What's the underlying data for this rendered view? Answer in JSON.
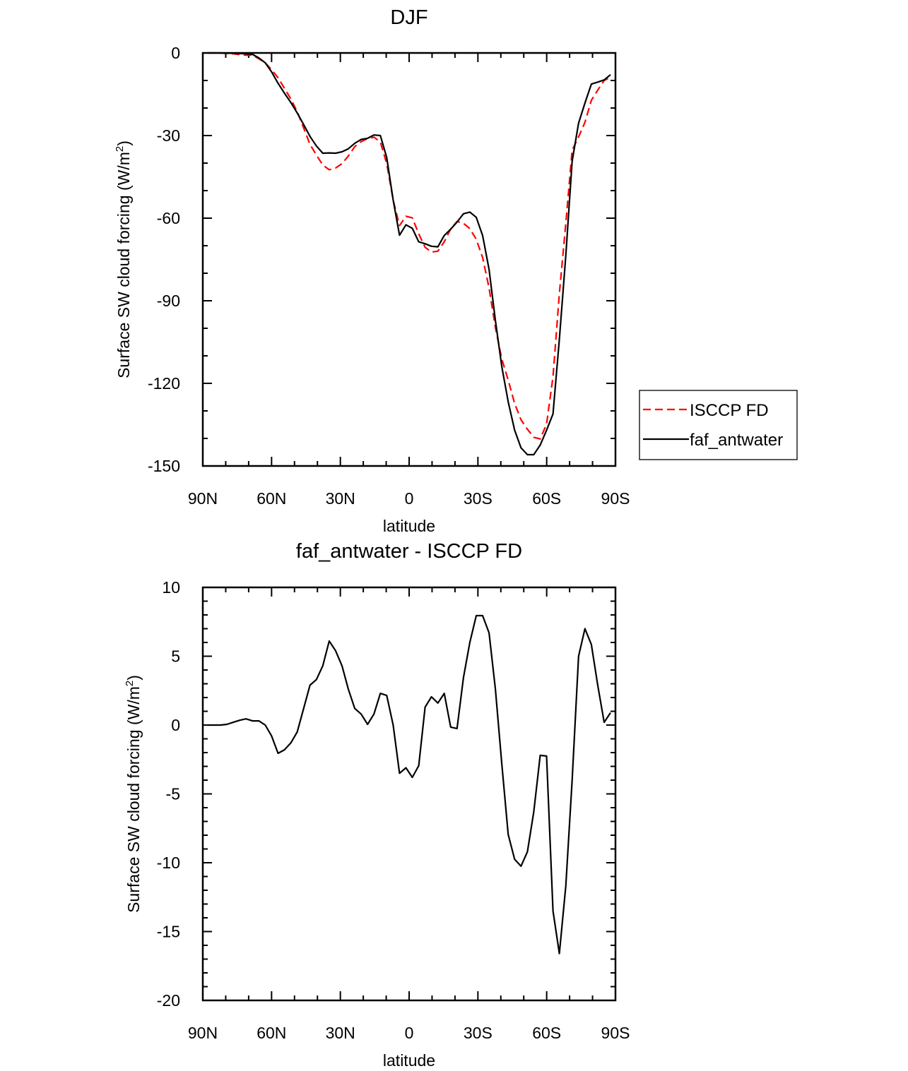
{
  "chart_data": [
    {
      "type": "line",
      "title": "DJF",
      "xlabel": "latitude",
      "ylabel": "Surface SW cloud forcing (W/m2)",
      "ylabel_parts": {
        "main": "Surface SW cloud forcing (W/m",
        "sup": "2",
        "close": ")"
      },
      "xlim": [
        90,
        -90
      ],
      "ylim": [
        -150,
        0
      ],
      "xticks": [
        90,
        60,
        30,
        0,
        -30,
        -60,
        -90
      ],
      "xtick_labels": [
        "90N",
        "60N",
        "30N",
        "0",
        "30S",
        "60S",
        "90S"
      ],
      "yticks": [
        0,
        -30,
        -60,
        -90,
        -120,
        -150
      ],
      "ytick_labels": [
        "0",
        "-30",
        "-60",
        "-90",
        "-120",
        "-150"
      ],
      "x_minor_step": 10,
      "y_minor_step": 10,
      "legend": {
        "placement": "right",
        "entries": [
          "ISCCP FD",
          "faf_antwater"
        ]
      },
      "series": [
        {
          "name": "ISCCP FD",
          "color": "#ff0000",
          "style": "dashed",
          "values": [
            0,
            0,
            0,
            -0.2,
            -0.3,
            -0.6,
            -0.8,
            -0.8,
            -2.1,
            -3.6,
            -6.1,
            -9.0,
            -12.8,
            -16.7,
            -21.3,
            -27.2,
            -33.2,
            -37.1,
            -40.7,
            -42.4,
            -41.8,
            -40.2,
            -37.4,
            -34.0,
            -32.2,
            -31.1,
            -30.6,
            -32.3,
            -40.2,
            -53.4,
            -62.7,
            -59.3,
            -59.9,
            -65.7,
            -70.6,
            -72.3,
            -72.0,
            -68.6,
            -63.9,
            -61.2,
            -61.9,
            -63.8,
            -67.7,
            -74.3,
            -85.3,
            -99.8,
            -111.2,
            -118.8,
            -127.3,
            -133.2,
            -136.7,
            -139.6,
            -140.2,
            -134.8,
            -117.6,
            -87.4,
            -62.0,
            -35.3,
            -30.5,
            -25.2,
            -17.2,
            -13.5,
            -10.0,
            -8.8
          ]
        },
        {
          "name": "faf_antwater",
          "color": "#000000",
          "style": "solid",
          "values": [
            0,
            0,
            0,
            -0.1,
            -0.1,
            -0.2,
            -0.3,
            -0.5,
            -1.8,
            -3.6,
            -6.9,
            -11.0,
            -14.6,
            -18.0,
            -21.8,
            -26.0,
            -30.3,
            -33.8,
            -36.4,
            -36.3,
            -36.4,
            -35.9,
            -34.8,
            -32.8,
            -31.4,
            -31.0,
            -29.8,
            -30.0,
            -38.0,
            -53.4,
            -66.2,
            -62.4,
            -63.7,
            -68.6,
            -69.3,
            -70.2,
            -70.4,
            -66.3,
            -64.0,
            -61.4,
            -58.4,
            -57.8,
            -59.7,
            -66.3,
            -78.6,
            -97.2,
            -114.0,
            -126.7,
            -137.0,
            -143.4,
            -145.9,
            -145.9,
            -142.4,
            -137.0,
            -131.1,
            -104.0,
            -73.7,
            -39.3,
            -25.5,
            -18.2,
            -11.3,
            -10.6,
            -9.8,
            -7.9
          ]
        }
      ]
    },
    {
      "type": "line",
      "title": "faf_antwater - ISCCP FD",
      "xlabel": "latitude",
      "ylabel": "Surface SW cloud forcing (W/m2)",
      "ylabel_parts": {
        "main": "Surface SW cloud forcing (W/m",
        "sup": "2",
        "close": ")"
      },
      "xlim": [
        90,
        -90
      ],
      "ylim": [
        -20,
        10
      ],
      "xticks": [
        90,
        60,
        30,
        0,
        -30,
        -60,
        -90
      ],
      "xtick_labels": [
        "90N",
        "60N",
        "30N",
        "0",
        "30S",
        "60S",
        "90S"
      ],
      "yticks": [
        10,
        5,
        0,
        -5,
        -10,
        -15,
        -20
      ],
      "ytick_labels": [
        "10",
        "5",
        "0",
        "-5",
        "-10",
        "-15",
        "-20"
      ],
      "x_minor_step": 10,
      "y_minor_step": 1,
      "series": [
        {
          "name": "faf_antwater - ISCCP FD",
          "color": "#000000",
          "style": "solid",
          "values": [
            0,
            0,
            0,
            0.05,
            0.2,
            0.35,
            0.45,
            0.3,
            0.3,
            0,
            -0.8,
            -2.05,
            -1.8,
            -1.3,
            -0.5,
            1.2,
            2.9,
            3.3,
            4.3,
            6.1,
            5.4,
            4.3,
            2.6,
            1.2,
            0.8,
            0.05,
            0.8,
            2.3,
            2.15,
            0,
            -3.5,
            -3.1,
            -3.8,
            -2.95,
            1.3,
            2.05,
            1.6,
            2.3,
            -0.15,
            -0.25,
            3.45,
            6.0,
            7.95,
            7.95,
            6.7,
            2.6,
            -2.85,
            -7.95,
            -9.75,
            -10.25,
            -9.2,
            -6.3,
            -2.2,
            -2.25,
            -13.5,
            -16.6,
            -11.7,
            -4.0,
            5.0,
            7.0,
            5.85,
            2.9,
            0.2,
            0.9
          ]
        }
      ]
    }
  ],
  "latitudes": {
    "first": 87.86,
    "step": -2.789,
    "count": 64
  }
}
